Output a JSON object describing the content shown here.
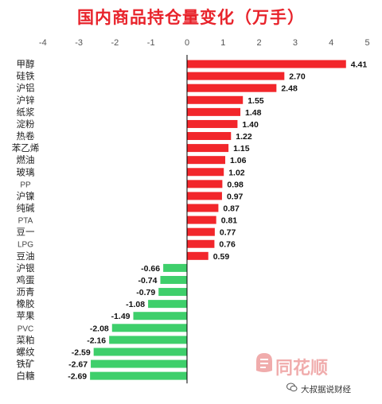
{
  "title": "国内商品持仓量变化（万手）",
  "watermark": "同花顺",
  "credit": "大叔据说财经",
  "colors": {
    "positive": "#f2262b",
    "negative": "#3ecf6b",
    "title": "#e8232b"
  },
  "chart_data": {
    "type": "bar",
    "orientation": "horizontal",
    "title": "国内商品持仓量变化（万手）",
    "xlim": [
      -4,
      5
    ],
    "xticks": [
      -4,
      -3,
      -2,
      -1,
      0,
      1,
      2,
      3,
      4,
      5
    ],
    "xaxis_position": "top",
    "grid": false,
    "categories": [
      "甲醇",
      "硅铁",
      "沪铝",
      "沪锌",
      "纸浆",
      "淀粉",
      "热卷",
      "苯乙烯",
      "燃油",
      "玻璃",
      "PP",
      "沪镍",
      "纯碱",
      "PTA",
      "豆一",
      "LPG",
      "豆油",
      "沪银",
      "鸡蛋",
      "沥青",
      "橡胶",
      "苹果",
      "PVC",
      "菜粕",
      "螺纹",
      "铁矿",
      "白糖"
    ],
    "values": [
      4.41,
      2.7,
      2.48,
      1.55,
      1.48,
      1.4,
      1.22,
      1.15,
      1.06,
      1.02,
      0.98,
      0.97,
      0.87,
      0.81,
      0.77,
      0.76,
      0.59,
      -0.66,
      -0.74,
      -0.79,
      -1.08,
      -1.49,
      -2.08,
      -2.16,
      -2.59,
      -2.67,
      -2.69
    ],
    "value_labels": [
      "4.41",
      "2.70",
      "2.48",
      "1.55",
      "1.48",
      "1.40",
      "1.22",
      "1.15",
      "1.06",
      "1.02",
      "0.98",
      "0.97",
      "0.87",
      "0.81",
      "0.77",
      "0.76",
      "0.59",
      "-0.66",
      "-0.74",
      "-0.79",
      "-1.08",
      "-1.49",
      "-2.08",
      "-2.16",
      "-2.59",
      "-2.67",
      "-2.69"
    ]
  }
}
